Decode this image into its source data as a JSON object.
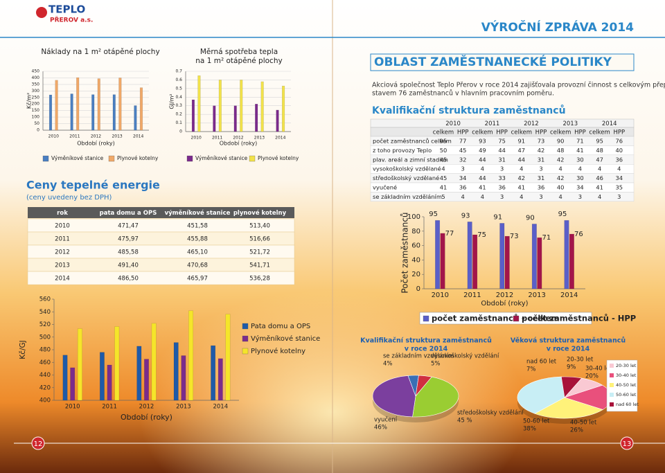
{
  "header": {
    "logo": "TEPLO",
    "logo_sub": "PŘEROV a.s.",
    "report": "VÝROČNÍ ZPRÁVA 2014"
  },
  "left": {
    "section_title": "Ceny tepelné energie",
    "note": "(ceny uvedeny bez DPH)",
    "price_table": {
      "header": [
        "rok",
        "pata domu a OPS",
        "výměníkové stanice",
        "plynové kotelny"
      ],
      "rows": [
        [
          "2010",
          "471,47",
          "451,58",
          "513,40"
        ],
        [
          "2011",
          "475,97",
          "455,88",
          "516,66"
        ],
        [
          "2012",
          "485,58",
          "465,10",
          "521,72"
        ],
        [
          "2013",
          "491,40",
          "470,68",
          "541,71"
        ],
        [
          "2014",
          "486,50",
          "465,97",
          "536,28"
        ]
      ]
    },
    "page_number": "12"
  },
  "right": {
    "section_title": "OBLAST ZAMĚSTNANECKÉ POLITIKY",
    "paragraph": [
      "Akciová společnost Teplo Přerov v roce 2014 zajišťovala provozní činnost s celkovým přepočteným",
      "stavem 76 zaměstnanců v hlavním pracovním poměru."
    ],
    "subtitle": "Kvalifikační struktura zaměstnanců",
    "staff_table": {
      "years": [
        "2010",
        "2011",
        "2012",
        "2013",
        "2014"
      ],
      "subheaders": [
        "celkem",
        "HPP"
      ],
      "rows": [
        {
          "label": "počet zaměstnanců celkem",
          "cells": [
            95,
            77,
            93,
            75,
            91,
            73,
            90,
            71,
            95,
            76
          ]
        },
        {
          "label": "z toho provozy Teplo",
          "cells": [
            50,
            45,
            49,
            44,
            47,
            42,
            48,
            41,
            48,
            40
          ]
        },
        {
          "label": "plav. areál a zimní stadion",
          "cells": [
            45,
            32,
            44,
            31,
            44,
            31,
            42,
            30,
            47,
            36
          ]
        },
        {
          "label": "vysokoškolský vzdělané",
          "cells": [
            4,
            3,
            4,
            3,
            4,
            3,
            4,
            4,
            4,
            4
          ]
        },
        {
          "label": "středoškolský vzdělané",
          "cells": [
            45,
            34,
            44,
            33,
            42,
            31,
            42,
            30,
            46,
            34
          ]
        },
        {
          "label": "vyučené",
          "cells": [
            41,
            36,
            41,
            36,
            41,
            36,
            40,
            34,
            41,
            35
          ]
        },
        {
          "label": "se základním vzděláním",
          "cells": [
            5,
            4,
            4,
            3,
            4,
            3,
            4,
            3,
            4,
            3
          ]
        }
      ]
    },
    "page_number": "13"
  },
  "chart_data": [
    {
      "type": "bar",
      "title": [
        "Náklady na 1 m² otápěné plochy"
      ],
      "ylabel": "Kč/m²",
      "xlabel": "Období (roky)",
      "categories": [
        "2010",
        "2011",
        "2012",
        "2013",
        "2014"
      ],
      "series": [
        {
          "name": "Výměníkové stanice",
          "color": "#4a7fc1",
          "values": [
            270,
            278,
            272,
            272,
            188
          ]
        },
        {
          "name": "Plynové kotelny",
          "color": "#f0a868",
          "values": [
            382,
            402,
            394,
            400,
            325
          ]
        }
      ],
      "ylim": [
        0,
        450
      ],
      "yticks": [
        0,
        50,
        100,
        150,
        200,
        250,
        300,
        350,
        400,
        450
      ],
      "grid": true
    },
    {
      "type": "bar",
      "title": [
        "Měrná spotřeba tepla",
        "na 1 m² otápěné plochy"
      ],
      "ylabel": "GJ/m²",
      "xlabel": "Období (roky)",
      "categories": [
        "2010",
        "2011",
        "2012",
        "2013",
        "2014"
      ],
      "series": [
        {
          "name": "Výměníkové stanice",
          "color": "#7b2a8c",
          "values": [
            0.37,
            0.3,
            0.3,
            0.32,
            0.25
          ]
        },
        {
          "name": "Plynové kotelny",
          "color": "#f2e24a",
          "values": [
            0.65,
            0.6,
            0.6,
            0.58,
            0.53
          ]
        }
      ],
      "ylim": [
        0,
        0.7
      ],
      "yticks": [
        0,
        0.1,
        0.2,
        0.3,
        0.4,
        0.5,
        0.6,
        0.7
      ],
      "grid": true
    },
    {
      "type": "bar",
      "ylabel": "Kč/GJ",
      "xlabel": "Období (roky)",
      "categories": [
        "2010",
        "2011",
        "2012",
        "2013",
        "2014"
      ],
      "series": [
        {
          "name": "Pata domu a OPS",
          "color": "#1f5aa8",
          "values": [
            471.47,
            475.97,
            485.58,
            491.4,
            486.5
          ]
        },
        {
          "name": "Výměníkové stanice",
          "color": "#7a2c8c",
          "values": [
            451.58,
            455.88,
            465.1,
            470.68,
            465.97
          ]
        },
        {
          "name": "Plynové kotelny",
          "color": "#f5e52a",
          "values": [
            513.4,
            516.66,
            521.72,
            541.71,
            536.28
          ]
        }
      ],
      "ylim": [
        400,
        560
      ],
      "yticks": [
        400,
        420,
        440,
        460,
        480,
        500,
        520,
        540,
        560
      ],
      "grid": false
    },
    {
      "type": "bar",
      "ylabel": "Počet zaměstnanců",
      "xlabel": "Období (roky)",
      "categories": [
        "2010",
        "2011",
        "2012",
        "2013",
        "2014"
      ],
      "series": [
        {
          "name": "počet zaměstnanců - celkem",
          "color": "#5a5fc8",
          "values": [
            95,
            93,
            91,
            90,
            95
          ]
        },
        {
          "name": "počet zaměstnanců - HPP",
          "color": "#a3154a",
          "values": [
            77,
            75,
            73,
            71,
            76
          ]
        }
      ],
      "ylim": [
        0,
        100
      ],
      "yticks": [
        0,
        20,
        40,
        60,
        80,
        100
      ],
      "grid": false,
      "data_labels": true
    },
    {
      "type": "pie",
      "title": [
        "Kvalifikační struktura zaměstnanců",
        "v roce 2014"
      ],
      "categories": [
        "se základním vzděláním",
        "vysokoškolský vzdělání",
        "středoškolsky vzdělání",
        "vyučení"
      ],
      "values": [
        4,
        5,
        45,
        46
      ],
      "value_labels": [
        "4%",
        "5%",
        "45 %",
        "46%"
      ],
      "colors": [
        "#3a6fb5",
        "#d03040",
        "#9acd32",
        "#7b3f9e"
      ]
    },
    {
      "type": "pie",
      "title": [
        "Věková struktura zaměstnanců",
        "v roce 2014"
      ],
      "categories": [
        "20-30 let",
        "30-40 let",
        "40-50 let",
        "50-60 let",
        "nad 60 let"
      ],
      "values": [
        9,
        20,
        26,
        38,
        7
      ],
      "value_labels": [
        "9%",
        "20%",
        "26%",
        "38%",
        "7%"
      ],
      "colors": [
        "#f9c9d3",
        "#e9507c",
        "#fff27a",
        "#c8eef5",
        "#a8123a"
      ],
      "legend": "right"
    }
  ]
}
